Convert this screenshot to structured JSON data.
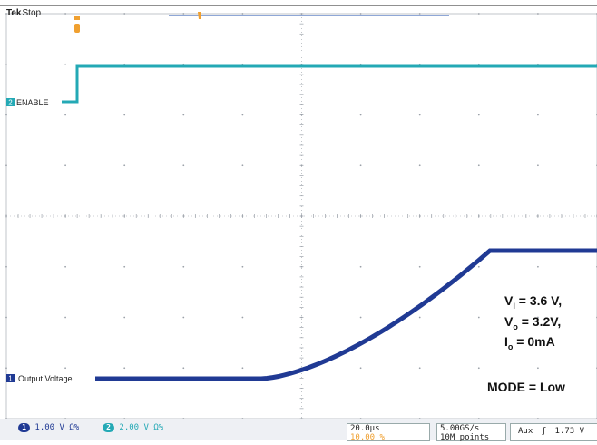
{
  "scope": {
    "brand": "Tek",
    "run_state": "Stop"
  },
  "colors": {
    "ch1": "#203a94",
    "ch2": "#24a9b5",
    "grid": "#9aa0a8",
    "trigger": "#f0a030"
  },
  "channels": [
    {
      "number": "1",
      "label": "Output Voltage",
      "scale": "1.00 V",
      "coupling": "Ω%"
    },
    {
      "number": "2",
      "label": "ENABLE",
      "scale": "2.00 V",
      "coupling": "Ω%"
    }
  ],
  "annotations": {
    "vi_sym": "V",
    "vi_sub": "I",
    "vi_val": " = 3.6 V,",
    "vo_sym": "V",
    "vo_sub": "o",
    "vo_val": " = 3.2V,",
    "io_sym": "I",
    "io_sub": "o",
    "io_val": " = 0mA",
    "mode": "MODE = Low"
  },
  "timebase": {
    "scale": "20.0µs",
    "position": "10.00 %"
  },
  "acquisition": {
    "rate": "5.00GS/s",
    "record": "10M points"
  },
  "trigger": {
    "source": "Aux",
    "slope": "ʃ",
    "level": "1.73 V"
  }
}
